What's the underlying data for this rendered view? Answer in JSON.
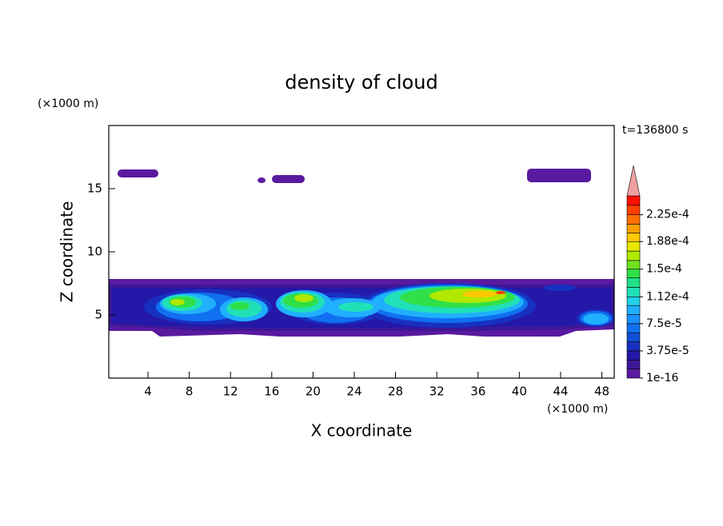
{
  "chart_data": {
    "type": "contour",
    "title": "density of cloud",
    "x_label": "X coordinate",
    "y_label": "Z coordinate",
    "x_unit": "(×1000 m)",
    "y_unit": "(×1000 m)",
    "annotation": "t=136800 s",
    "xlim": [
      0.2,
      49.2
    ],
    "xticks": [
      4,
      8,
      12,
      16,
      20,
      24,
      28,
      32,
      36,
      40,
      44,
      48
    ],
    "ylim": [
      0,
      20
    ],
    "yticks": [
      5,
      10,
      15
    ],
    "colorbar": {
      "levels": [
        1e-16,
        1.25e-05,
        2.5e-05,
        3.75e-05,
        5e-05,
        6.25e-05,
        7.5e-05,
        8.75e-05,
        0.0001,
        0.000112,
        0.000125,
        0.000138,
        0.00015,
        0.000162,
        0.000175,
        0.000188,
        0.0002,
        0.000212,
        0.000225,
        0.000238
      ],
      "colors": [
        "#5a1aa0",
        "#3c1898",
        "#2418a8",
        "#1830c0",
        "#1050d8",
        "#1070f0",
        "#1890ff",
        "#20b0ff",
        "#20d0e8",
        "#20e0b8",
        "#20e088",
        "#30e048",
        "#70e020",
        "#b0e800",
        "#e8e800",
        "#ffc800",
        "#ffa000",
        "#ff7000",
        "#ff4000",
        "#ff1000"
      ],
      "over_color": "#f0a0a0",
      "ticks": [
        {
          "value": 1e-16,
          "label": "1e-16"
        },
        {
          "value": 3.75e-05,
          "label": "3.75e-5"
        },
        {
          "value": 7.5e-05,
          "label": "7.5e-5"
        },
        {
          "value": 0.000112,
          "label": "1.12e-4"
        },
        {
          "value": 0.00015,
          "label": "1.5e-4"
        },
        {
          "value": 0.000188,
          "label": "1.88e-4"
        },
        {
          "value": 0.000225,
          "label": "2.25e-4"
        }
      ]
    }
  }
}
